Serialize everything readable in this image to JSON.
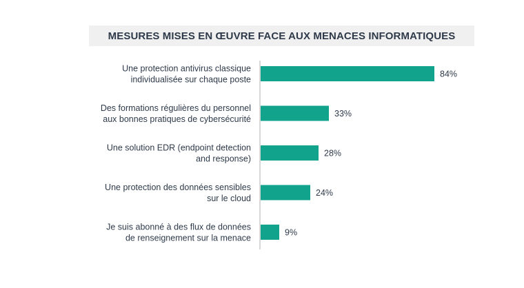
{
  "chart_data": {
    "type": "bar",
    "orientation": "horizontal",
    "title": "MESURES MISES EN ŒUVRE FACE AUX MENACES INFORMATIQUES",
    "categories": [
      [
        "Une protection antivirus classique",
        "individualisée sur chaque poste"
      ],
      [
        "Des formations régulières du personnel",
        "aux bonnes pratiques de cybersécurité"
      ],
      [
        "Une solution EDR (endpoint detection",
        "and response)"
      ],
      [
        "Une protection des données sensibles",
        "sur le cloud"
      ],
      [
        "Je suis abonné à des flux de données",
        "de renseignement sur la menace"
      ]
    ],
    "values": [
      84,
      33,
      28,
      24,
      9
    ],
    "value_labels": [
      "84%",
      "33%",
      "28%",
      "24%",
      "9%"
    ],
    "xlim": [
      0,
      100
    ],
    "bar_color": "#12a38c",
    "axis_color": "#b0b0b0",
    "text_color": "#2e3a4a",
    "grid": false,
    "legend": "none"
  }
}
